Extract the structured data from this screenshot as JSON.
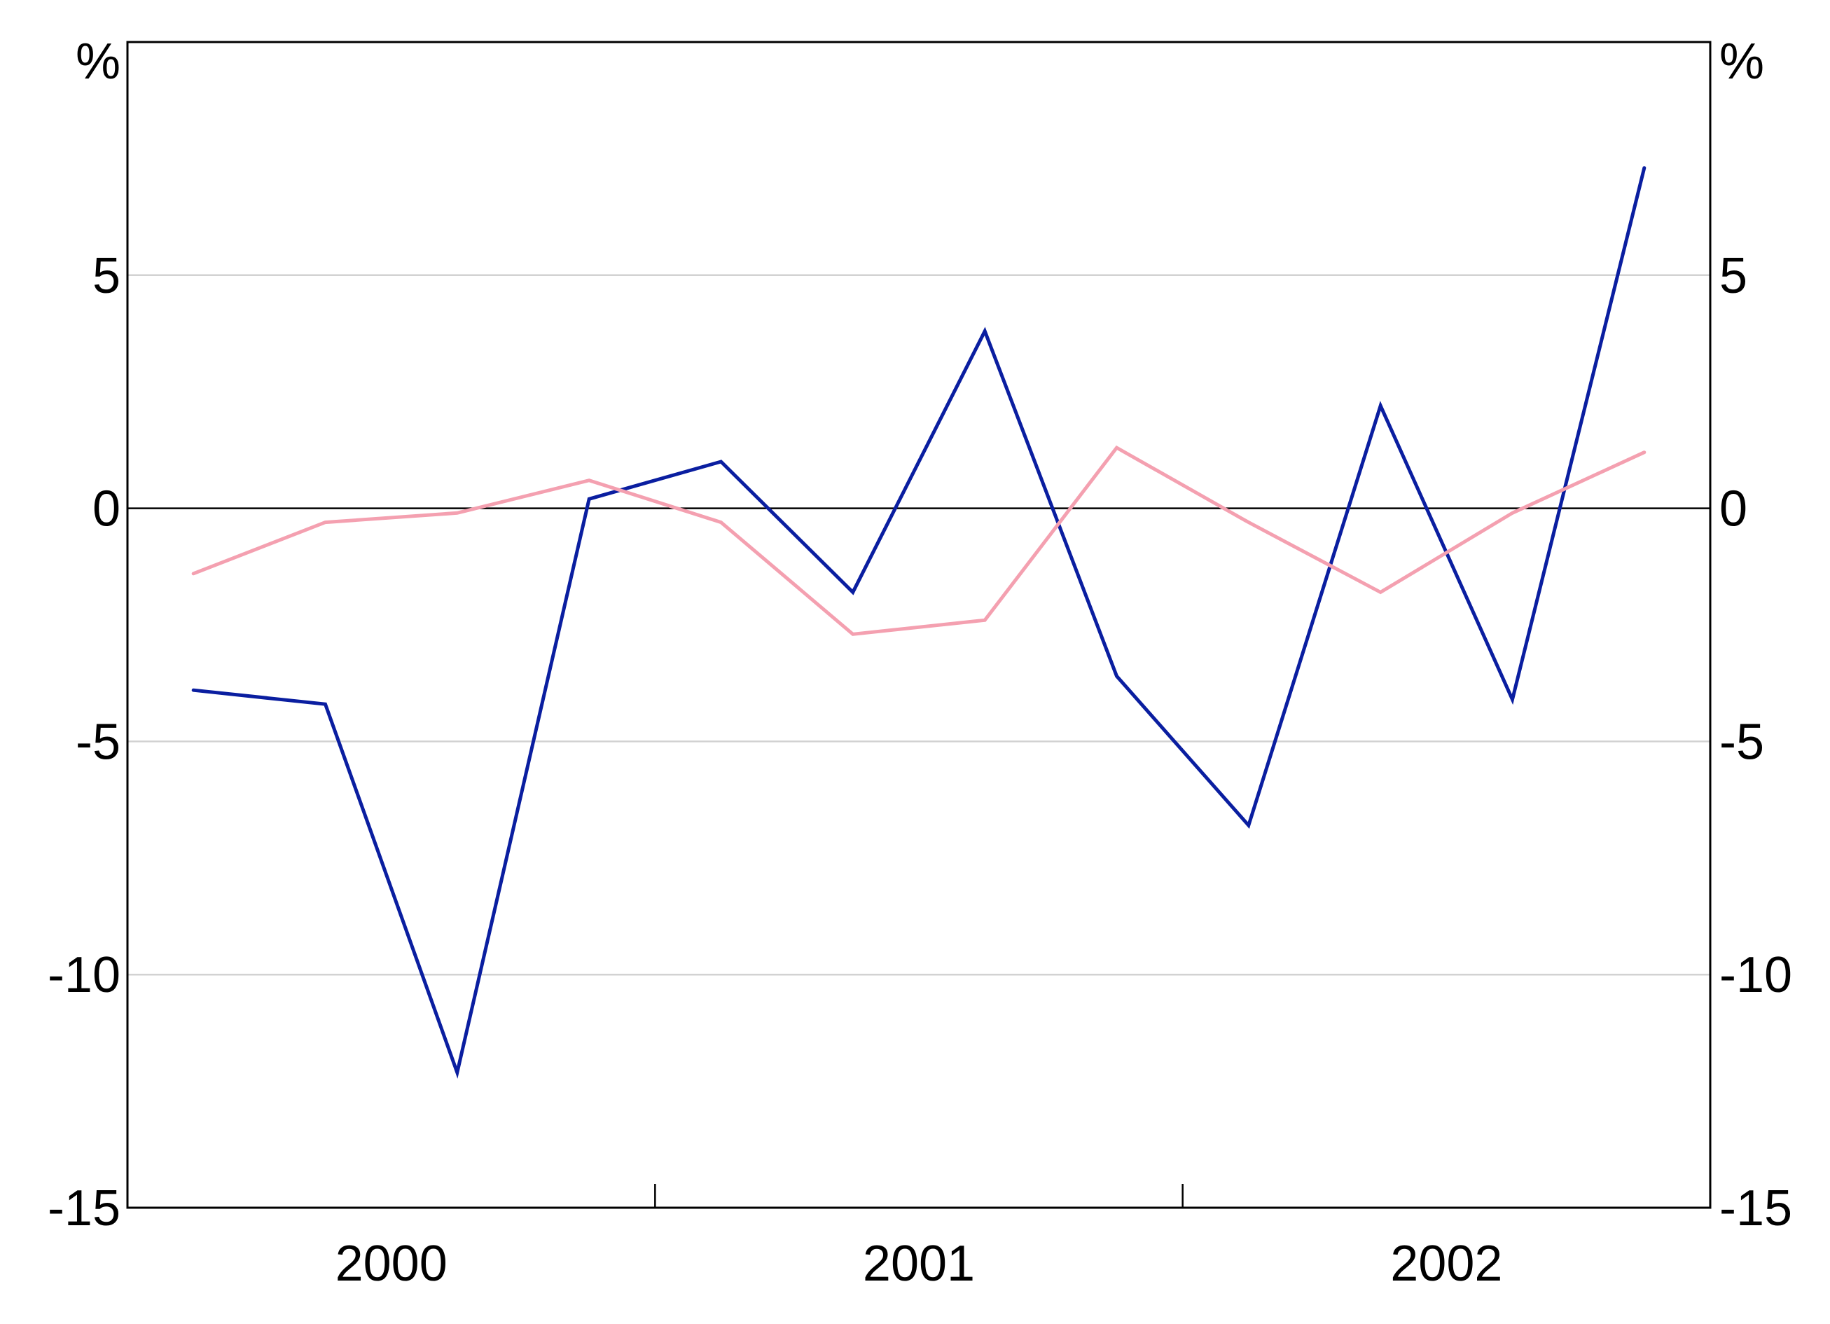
{
  "chart_data": {
    "type": "line",
    "title": "",
    "xlabel": "",
    "ylabel": "",
    "y_unit_left": "%",
    "y_unit_right": "%",
    "ylim": [
      -15,
      10
    ],
    "y_ticks": [
      -15,
      -10,
      -5,
      0,
      5
    ],
    "y_tick_labels": [
      "-15",
      "-10",
      "-5",
      "0",
      "5"
    ],
    "grid": true,
    "x_period_labels": [
      "2000",
      "2001",
      "2002"
    ],
    "x_quarters": [
      "Mar 2000",
      "Jun 2000",
      "Sep 2000",
      "Dec 2000",
      "Mar 2001",
      "Jun 2001",
      "Sep 2001",
      "Dec 2001",
      "Mar 2002",
      "Jun 2002",
      "Sep 2002",
      "Dec 2002"
    ],
    "series": [
      {
        "color": "#0a1ea0",
        "values": [
          -3.9,
          -4.2,
          -12.1,
          0.2,
          1.0,
          -1.8,
          3.8,
          -3.6,
          -6.8,
          2.2,
          -4.1,
          7.3
        ]
      },
      {
        "color": "#f4a0b0",
        "values": [
          -1.4,
          -0.3,
          -0.1,
          0.6,
          -0.3,
          -2.7,
          -2.4,
          1.3,
          -0.3,
          -1.8,
          -0.1,
          1.2
        ]
      }
    ]
  }
}
